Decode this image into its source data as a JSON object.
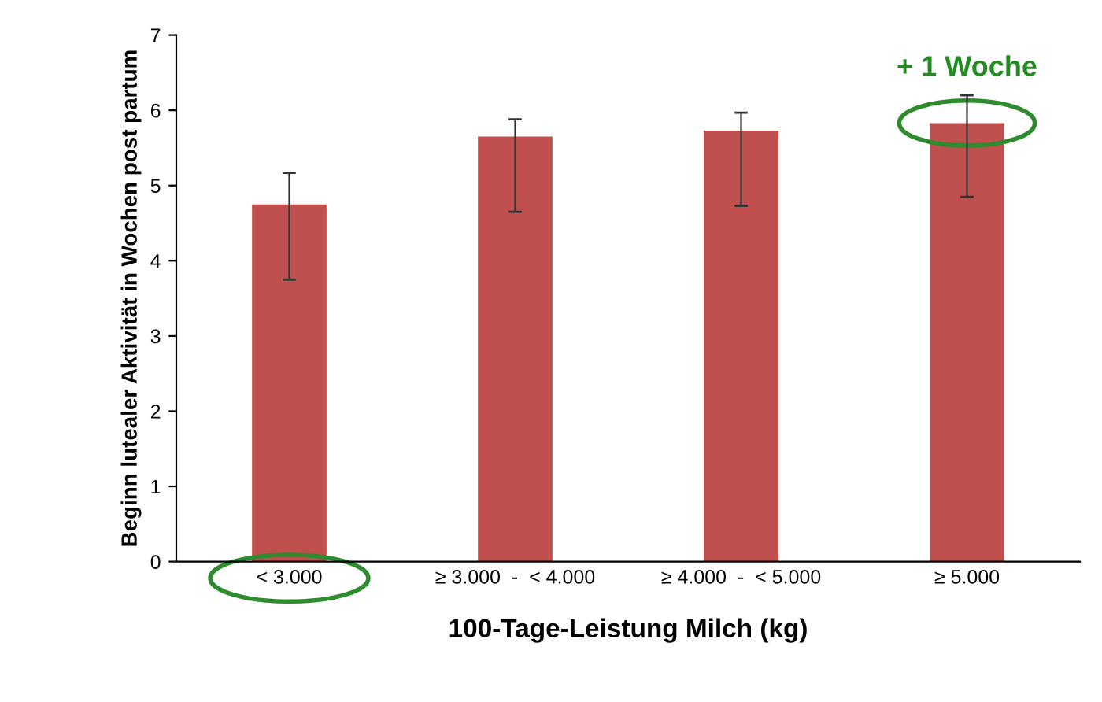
{
  "chart_data": {
    "type": "bar",
    "xlabel": "100-Tage-Leistung Milch (kg)",
    "ylabel": "Beginn lutealer Aktivität in Wochen post partum",
    "categories": [
      "< 3.000",
      "≥ 3.000  -  < 4.000",
      "≥ 4.000  -  < 5.000",
      "≥ 5.000"
    ],
    "values": [
      4.75,
      5.65,
      5.73,
      5.83
    ],
    "errors": [
      [
        3.75,
        5.17
      ],
      [
        4.65,
        5.88
      ],
      [
        4.73,
        5.97
      ],
      [
        4.85,
        6.2
      ]
    ],
    "color": "#c0504d",
    "ylim": [
      0,
      7
    ],
    "yticks": [
      0,
      1,
      2,
      3,
      4,
      5,
      6,
      7
    ],
    "grid": false,
    "legend": false,
    "annotations": [
      {
        "text": "+ 1 Woche",
        "x": "≥ 5.000",
        "y": 5.83
      }
    ]
  }
}
